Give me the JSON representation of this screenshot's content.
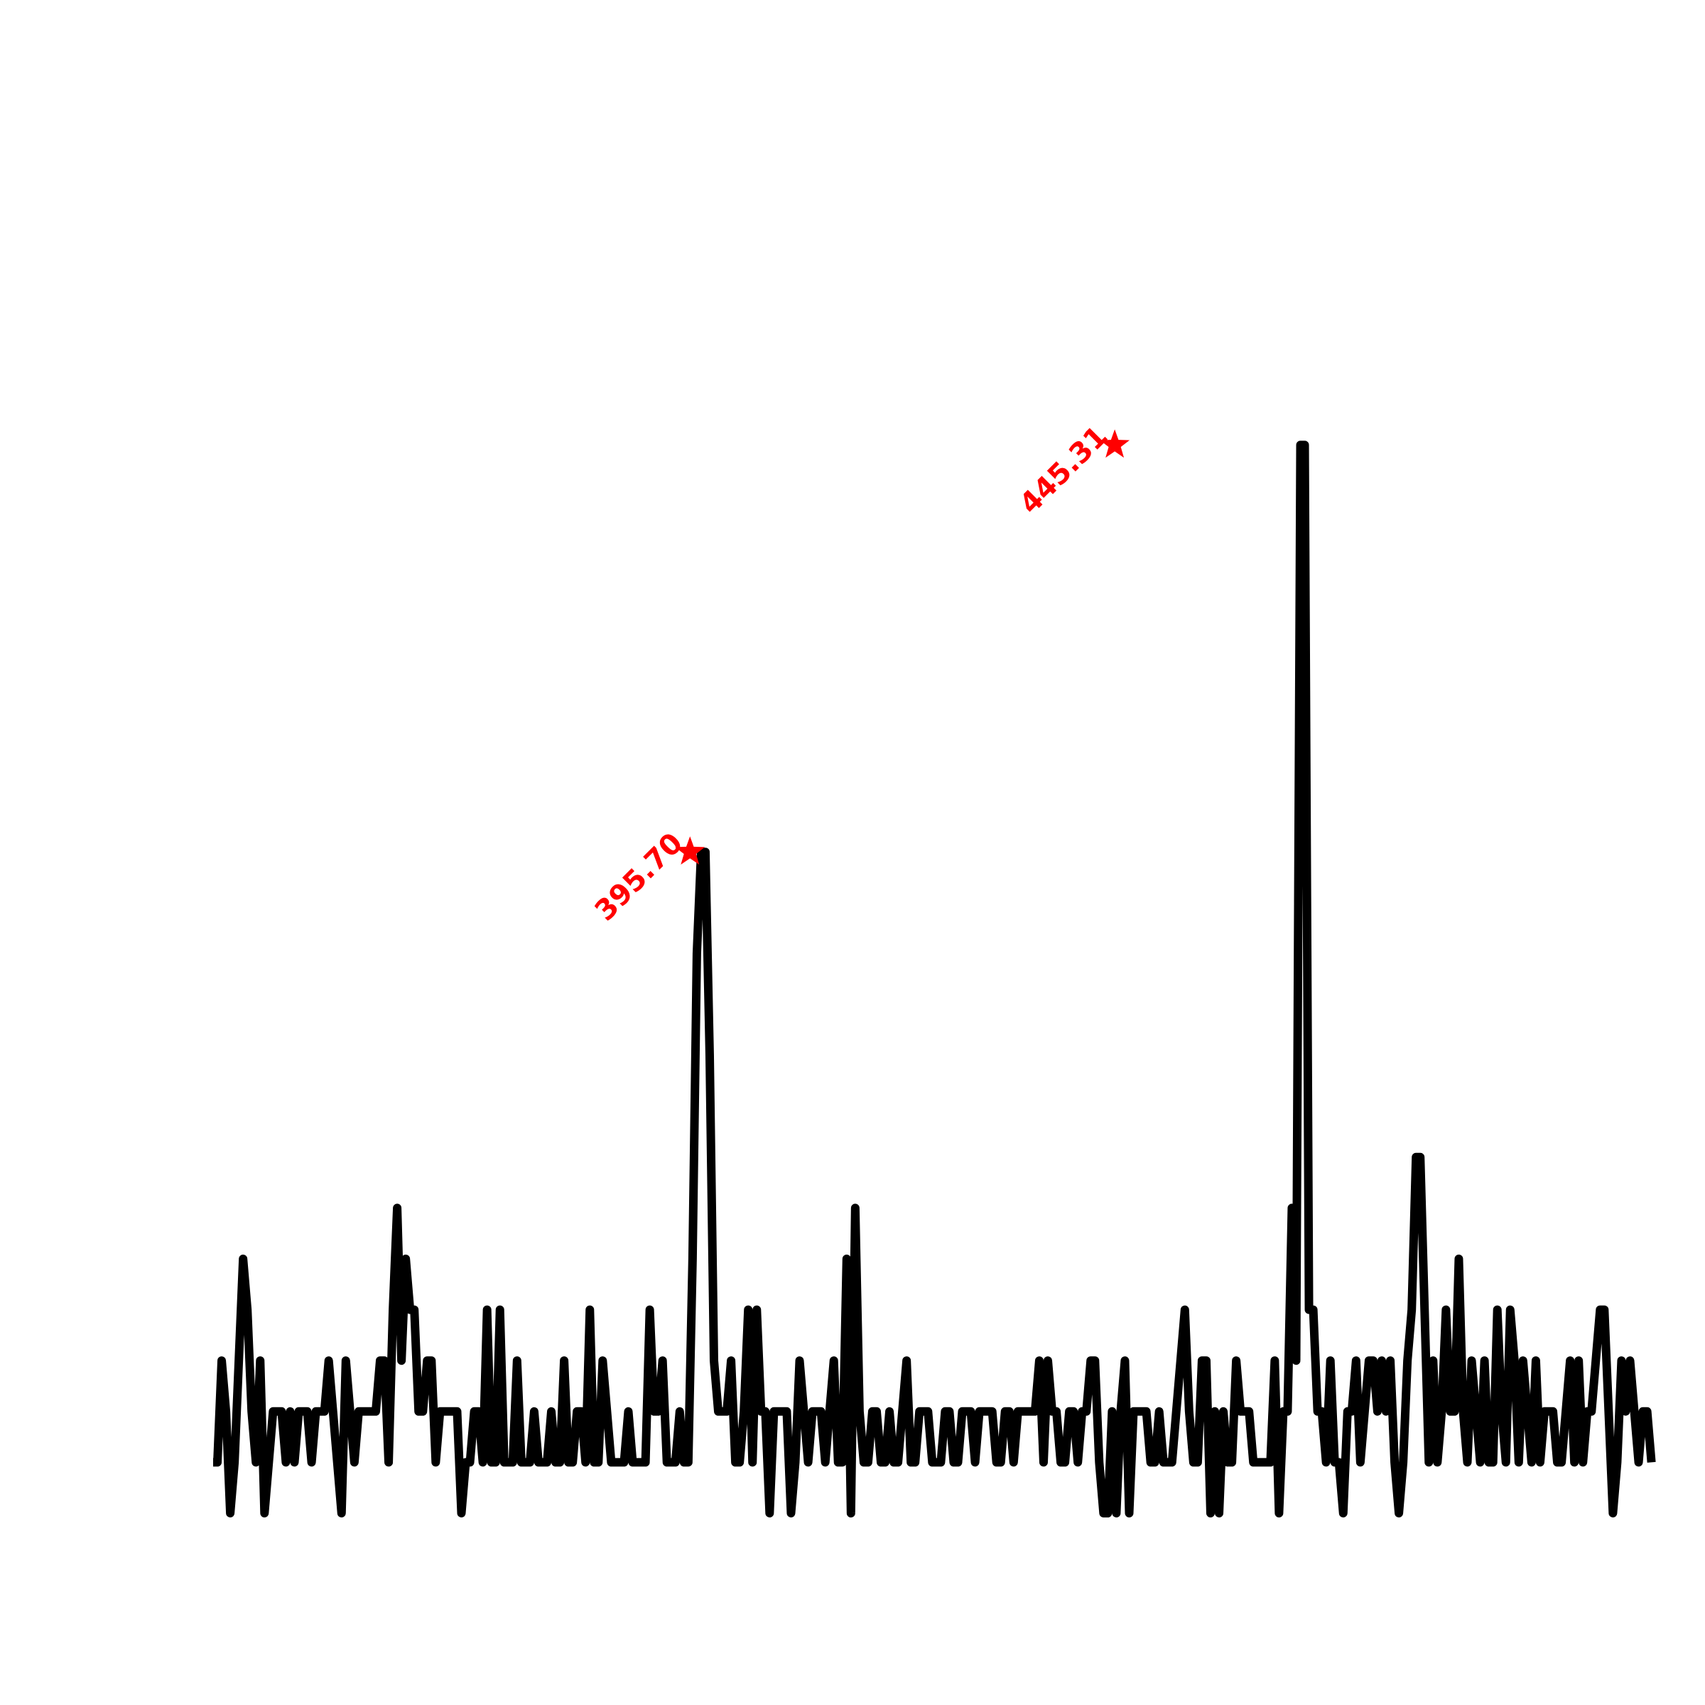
{
  "chart_data": {
    "type": "line",
    "title": "",
    "xlabel": "",
    "ylabel": "",
    "axes_visible": false,
    "grid": false,
    "xlim": [
      340,
      496
    ],
    "ylim": [
      0,
      25
    ],
    "line_color": "#000000",
    "marker_color": "#ff0000",
    "marker": "star",
    "x_start": 340,
    "x_step": 0.5,
    "series": [
      {
        "values": [
          1,
          1,
          3,
          2,
          0,
          1,
          3,
          5,
          4,
          2,
          1,
          3,
          0,
          1,
          2,
          2,
          2,
          1,
          2,
          1,
          2,
          2,
          2,
          1,
          2,
          2,
          2,
          3,
          2,
          1,
          0,
          3,
          2,
          1,
          2,
          2,
          2,
          2,
          2,
          3,
          3,
          1,
          4,
          6,
          3,
          5,
          4,
          4,
          2,
          2,
          3,
          3,
          1,
          2,
          2,
          2,
          2,
          2,
          0,
          1,
          1,
          2,
          2,
          1,
          4,
          1,
          1,
          4,
          1,
          1,
          1,
          3,
          1,
          1,
          1,
          2,
          1,
          1,
          1,
          2,
          1,
          1,
          3,
          1,
          1,
          2,
          2,
          1,
          4,
          1,
          1,
          3,
          2,
          1,
          1,
          1,
          1,
          2,
          1,
          1,
          1,
          1,
          4,
          2,
          2,
          3,
          1,
          1,
          1,
          2,
          1,
          1,
          5,
          11,
          13,
          13,
          9,
          3,
          2,
          2,
          2,
          3,
          1,
          1,
          2,
          4,
          1,
          4,
          2,
          2,
          0,
          2,
          2,
          2,
          2,
          0,
          1,
          3,
          2,
          1,
          2,
          2,
          2,
          1,
          2,
          3,
          1,
          1,
          5,
          0,
          6,
          2,
          1,
          1,
          2,
          2,
          1,
          1,
          2,
          1,
          1,
          2,
          3,
          1,
          1,
          2,
          2,
          2,
          1,
          1,
          1,
          2,
          2,
          1,
          1,
          2,
          2,
          2,
          1,
          2,
          2,
          2,
          2,
          1,
          1,
          2,
          2,
          1,
          2,
          2,
          2,
          2,
          2,
          3,
          1,
          3,
          2,
          2,
          1,
          1,
          2,
          2,
          1,
          2,
          2,
          3,
          3,
          1,
          0,
          0,
          2,
          0,
          2,
          3,
          0,
          2,
          2,
          2,
          2,
          1,
          1,
          2,
          1,
          1,
          1,
          2,
          3,
          4,
          2,
          1,
          1,
          3,
          3,
          0,
          2,
          0,
          2,
          1,
          1,
          3,
          2,
          2,
          2,
          1,
          1,
          1,
          1,
          1,
          3,
          0,
          2,
          2,
          6,
          3,
          21,
          21,
          4,
          4,
          2,
          2,
          1,
          3,
          1,
          1,
          0,
          2,
          2,
          3,
          1,
          2,
          3,
          3,
          2,
          3,
          2,
          3,
          1,
          0,
          1,
          3,
          4,
          7,
          7,
          4,
          1,
          3,
          1,
          2,
          4,
          2,
          2,
          5,
          2,
          1,
          3,
          2,
          1,
          3,
          1,
          1,
          4,
          2,
          1,
          4,
          3,
          1,
          3,
          2,
          1,
          3,
          1,
          2,
          2,
          2,
          1,
          1,
          2,
          3,
          1,
          3,
          1,
          2,
          2,
          3,
          4,
          4,
          2,
          0,
          1,
          3,
          2,
          3,
          2,
          1,
          2,
          2,
          1
        ]
      }
    ],
    "peaks": [
      {
        "x": 395.7,
        "y": 13,
        "label": "395.70"
      },
      {
        "x": 445.31,
        "y": 21,
        "label": "445.31"
      }
    ]
  }
}
